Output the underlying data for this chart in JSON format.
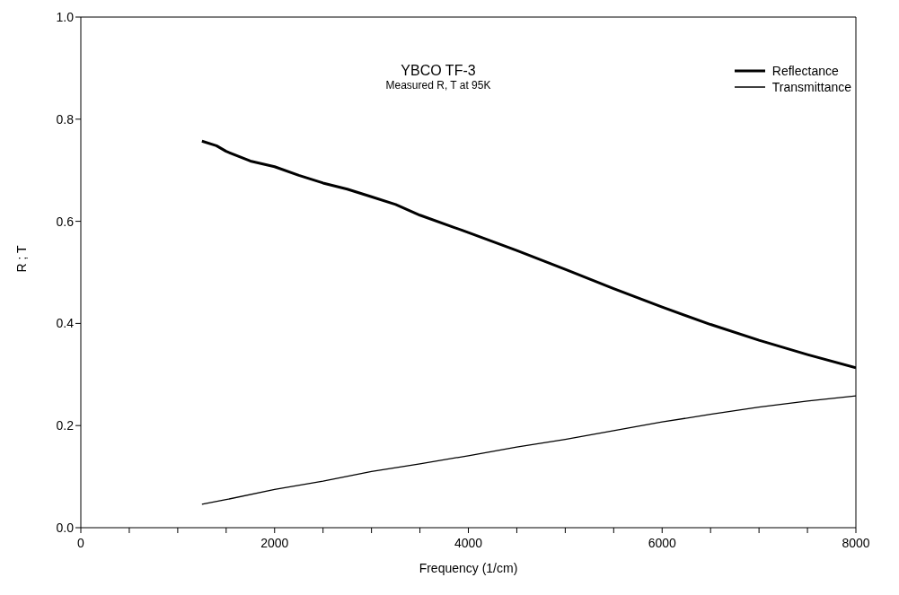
{
  "chart_data": {
    "type": "line",
    "title": "YBCO  TF-3",
    "subtitle": "Measured R, T at 95K",
    "xlabel": "Frequency  (1/cm)",
    "ylabel": "R ; T",
    "xlim": [
      0,
      8000
    ],
    "ylim": [
      0,
      1
    ],
    "xticks": [
      0,
      {
        "value": 500,
        "label": null
      },
      {
        "value": 1000,
        "label": null
      },
      {
        "value": 1500,
        "label": null
      },
      2000,
      {
        "value": 2500,
        "label": null
      },
      {
        "value": 3000,
        "label": null
      },
      {
        "value": 3500,
        "label": null
      },
      4000,
      {
        "value": 4500,
        "label": null
      },
      {
        "value": 5000,
        "label": null
      },
      {
        "value": 5500,
        "label": null
      },
      6000,
      {
        "value": 6500,
        "label": null
      },
      {
        "value": 7000,
        "label": null
      },
      {
        "value": 7500,
        "label": null
      },
      8000
    ],
    "yticks": [
      {
        "value": 0,
        "label": "0.0"
      },
      {
        "value": 0.2,
        "label": "0.2"
      },
      {
        "value": 0.4,
        "label": "0.4"
      },
      {
        "value": 0.6,
        "label": "0.6"
      },
      {
        "value": 0.8,
        "label": "0.8"
      },
      {
        "value": 1,
        "label": "1.0"
      }
    ],
    "legend": "top right",
    "grid": false,
    "marker": "none",
    "line_style": "solid",
    "series": [
      {
        "name": "Reflectance",
        "color": "#000000",
        "x": [
          1250,
          1400,
          1500,
          1750,
          2000,
          2250,
          2500,
          2750,
          3000,
          3250,
          3500,
          4000,
          4500,
          5000,
          5500,
          6000,
          6500,
          7000,
          7500,
          8000
        ],
        "values": [
          0.757,
          0.748,
          0.737,
          0.718,
          0.707,
          0.69,
          0.675,
          0.663,
          0.648,
          0.633,
          0.612,
          0.578,
          0.543,
          0.506,
          0.468,
          0.432,
          0.398,
          0.367,
          0.339,
          0.313
        ]
      },
      {
        "name": "Transmittance",
        "color": "#000000",
        "x": [
          1250,
          1500,
          2000,
          2500,
          3000,
          3500,
          4000,
          4500,
          5000,
          5500,
          6000,
          6500,
          7000,
          7500,
          8000
        ],
        "values": [
          0.046,
          0.055,
          0.075,
          0.091,
          0.11,
          0.125,
          0.141,
          0.158,
          0.173,
          0.19,
          0.207,
          0.222,
          0.236,
          0.248,
          0.258
        ]
      }
    ]
  }
}
